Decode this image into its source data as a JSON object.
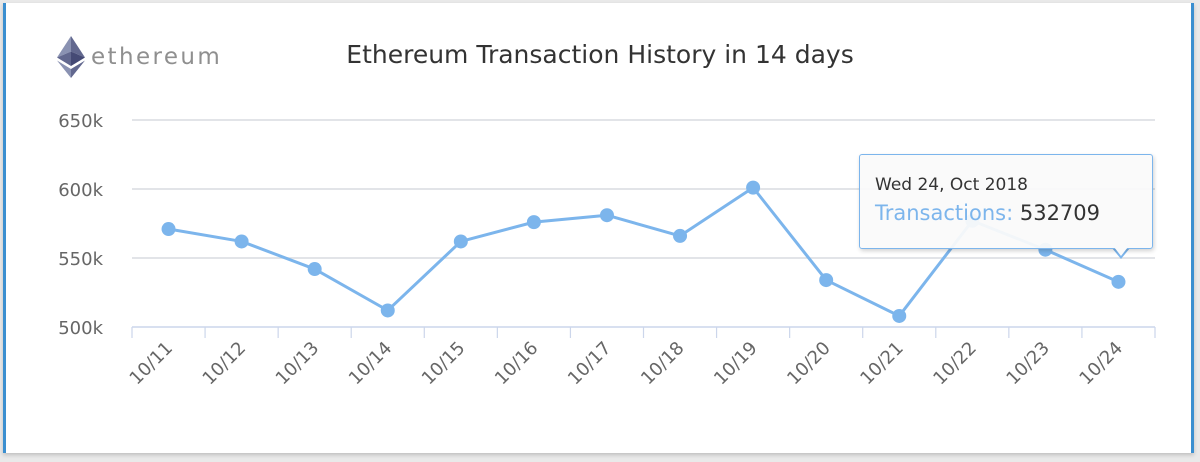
{
  "logo": {
    "text": "ethereum",
    "icon": "ethereum-diamond-icon"
  },
  "chart_data": {
    "type": "line",
    "title": "Ethereum Transaction History in 14 days",
    "categories": [
      "10/11",
      "10/12",
      "10/13",
      "10/14",
      "10/15",
      "10/16",
      "10/17",
      "10/18",
      "10/19",
      "10/20",
      "10/21",
      "10/22",
      "10/23",
      "10/24"
    ],
    "series": [
      {
        "values": [
          571000,
          562000,
          542000,
          512000,
          562000,
          576000,
          581000,
          566000,
          601000,
          534000,
          508000,
          577000,
          556000,
          532709
        ]
      }
    ],
    "ylim": [
      500000,
      650000
    ],
    "yticks": [
      500000,
      550000,
      600000,
      650000
    ],
    "ytick_labels": [
      "500k",
      "550k",
      "600k",
      "650k"
    ],
    "grid": true,
    "legend": "none",
    "colors": {
      "line": "#7cb5ec",
      "grid": "#d8dce0",
      "axis": "#ccd6eb"
    }
  },
  "tooltip": {
    "date": "Wed 24, Oct 2018",
    "label": "Transactions:",
    "value": "532709"
  }
}
